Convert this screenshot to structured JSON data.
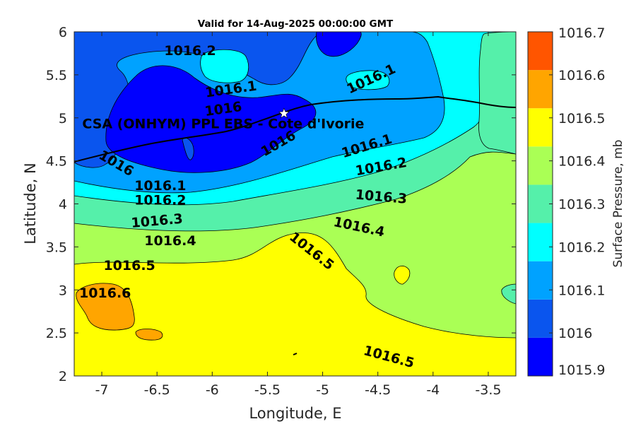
{
  "chart_data": {
    "type": "contour",
    "title": "Valid for 14-Aug-2025 00:00:00 GMT",
    "xlabel": "Longitude, E",
    "ylabel": "Latitude, N",
    "xlim": [
      -7.25,
      -3.25
    ],
    "ylim": [
      2,
      6
    ],
    "x_ticks": [
      -7,
      -6.5,
      -6,
      -5.5,
      -5,
      -4.5,
      -4,
      -3.5
    ],
    "x_tick_labels": [
      "-7",
      "-6.5",
      "-6",
      "-5.5",
      "-5",
      "-4.5",
      "-4",
      "-3.5"
    ],
    "y_ticks": [
      2,
      2.5,
      3,
      3.5,
      4,
      4.5,
      5,
      5.5,
      6
    ],
    "y_tick_labels": [
      "2",
      "2.5",
      "3",
      "3.5",
      "4",
      "4.5",
      "5",
      "5.5",
      "6"
    ],
    "colorbar": {
      "label": "Surface Pressure, mb",
      "levels": [
        1015.9,
        1016,
        1016.1,
        1016.2,
        1016.3,
        1016.4,
        1016.5,
        1016.6,
        1016.7
      ],
      "tick_labels": [
        "1015.9",
        "1016",
        "1016.1",
        "1016.2",
        "1016.3",
        "1016.4",
        "1016.5",
        "1016.6",
        "1016.7"
      ],
      "colors": [
        "#0000ff",
        "#0a55ee",
        "#00a2ff",
        "#00ffff",
        "#55f0aa",
        "#aaff55",
        "#ffff00",
        "#ffa500",
        "#ff5500"
      ]
    },
    "contour_labels": [
      {
        "text": "1016.2",
        "x": -6.2,
        "y": 5.78,
        "rotate": 0
      },
      {
        "text": "1016.1",
        "x": -5.83,
        "y": 5.33,
        "rotate": -8
      },
      {
        "text": "1016",
        "x": -5.9,
        "y": 5.1,
        "rotate": -8
      },
      {
        "text": "1016.1",
        "x": -4.56,
        "y": 5.45,
        "rotate": -25
      },
      {
        "text": "1016",
        "x": -6.87,
        "y": 4.47,
        "rotate": 30
      },
      {
        "text": "1016",
        "x": -5.4,
        "y": 4.7,
        "rotate": -30
      },
      {
        "text": "1016.1",
        "x": -4.6,
        "y": 4.67,
        "rotate": -17
      },
      {
        "text": "1016.1",
        "x": -6.47,
        "y": 4.21,
        "rotate": 0
      },
      {
        "text": "1016.2",
        "x": -4.47,
        "y": 4.43,
        "rotate": -10
      },
      {
        "text": "1016.2",
        "x": -6.47,
        "y": 4.04,
        "rotate": 0
      },
      {
        "text": "1016.3",
        "x": -4.47,
        "y": 4.08,
        "rotate": 5
      },
      {
        "text": "1016.3",
        "x": -6.5,
        "y": 3.8,
        "rotate": -5
      },
      {
        "text": "1016.4",
        "x": -4.67,
        "y": 3.73,
        "rotate": 12
      },
      {
        "text": "1016.4",
        "x": -6.38,
        "y": 3.57,
        "rotate": 0
      },
      {
        "text": "1016.5",
        "x": -5.1,
        "y": 3.45,
        "rotate": 38
      },
      {
        "text": "1016.5",
        "x": -6.75,
        "y": 3.28,
        "rotate": 0
      },
      {
        "text": "1016.6",
        "x": -6.97,
        "y": 2.96,
        "rotate": 0
      },
      {
        "text": "1016.5",
        "x": -4.4,
        "y": 2.22,
        "rotate": 15
      }
    ],
    "station": {
      "name": "CSA (ONHYM) PPL EBS  - Cote d'Ivorie",
      "lon": -5.35,
      "lat": 5.05
    }
  }
}
